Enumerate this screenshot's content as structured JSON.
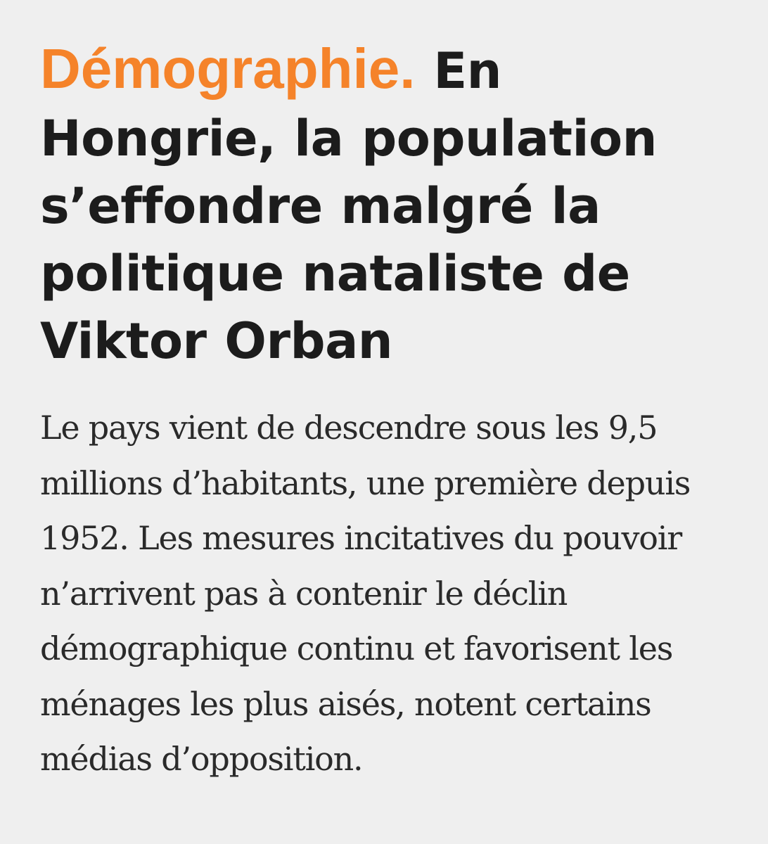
{
  "article": {
    "kicker": "Démographie.",
    "kicker_color": "#f5832a",
    "title": "En Hongrie, la population s’effondre malgré la politique nataliste de Viktor Orban",
    "lede": "Le pays vient de descendre sous les 9,5 millions d’habitants, une première depuis 1952. Les mesures incitatives du pouvoir n’arrivent pas à contenir le déclin démographique continu et favorisent les ménages les plus aisés, notent certains médias d’opposition."
  }
}
